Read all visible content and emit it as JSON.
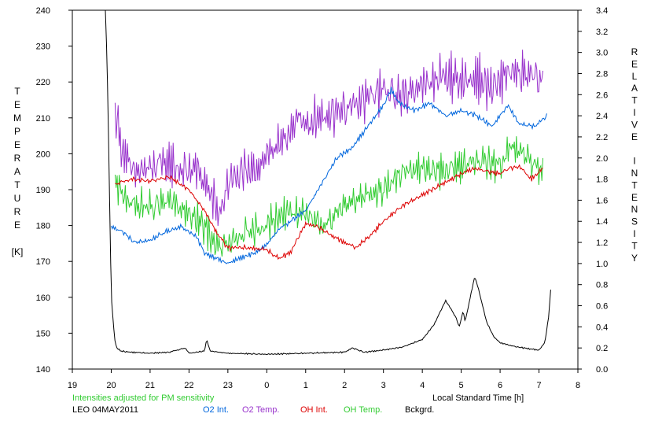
{
  "chart_data": {
    "type": "line",
    "left_axis_label": [
      "T",
      "E",
      "M",
      "P",
      "E",
      "R",
      "A",
      "T",
      "U",
      "R",
      "E",
      "",
      "[K]"
    ],
    "right_axis_label": [
      "R",
      "E",
      "L",
      "A",
      "T",
      "I",
      "V",
      "E",
      "",
      "I",
      "N",
      "T",
      "E",
      "N",
      "S",
      "I",
      "T",
      "Y"
    ],
    "xlabel": "Local Standard Time [h]",
    "x_ticks": [
      "19",
      "20",
      "21",
      "22",
      "23",
      "0",
      "1",
      "2",
      "3",
      "4",
      "5",
      "6",
      "7",
      "8"
    ],
    "ylim_left": [
      140,
      240
    ],
    "y_ticks_left": [
      "140",
      "150",
      "160",
      "170",
      "180",
      "190",
      "200",
      "210",
      "220",
      "230",
      "240"
    ],
    "ylim_right": [
      0,
      3.4
    ],
    "y_ticks_right": [
      "0.0",
      "0.2",
      "0.4",
      "0.6",
      "0.8",
      "1.0",
      "1.2",
      "1.4",
      "1.6",
      "1.8",
      "2.0",
      "2.2",
      "2.4",
      "2.6",
      "2.8",
      "3.0",
      "3.2",
      "3.4"
    ],
    "note": "Intensities adjusted for PM sensitivity",
    "station": "LEO 04MAY2011",
    "series": [
      {
        "name": "O2 Int.",
        "axis": "right",
        "color": "#0066dd",
        "noise": 0.03,
        "x": [
          20.0,
          20.3,
          20.6,
          21.0,
          21.4,
          21.8,
          22.2,
          22.4,
          22.7,
          23.0,
          23.3,
          23.7,
          24.0,
          24.3,
          24.6,
          25.0,
          25.4,
          25.8,
          26.2,
          26.6,
          27.0,
          27.2,
          27.4,
          27.8,
          28.2,
          28.6,
          29.0,
          29.4,
          29.8,
          30.2,
          30.5,
          30.9,
          31.2
        ],
        "y": [
          1.35,
          1.3,
          1.2,
          1.22,
          1.3,
          1.35,
          1.25,
          1.1,
          1.05,
          1.0,
          1.05,
          1.1,
          1.18,
          1.32,
          1.4,
          1.5,
          1.75,
          2.0,
          2.1,
          2.3,
          2.5,
          2.65,
          2.52,
          2.45,
          2.52,
          2.4,
          2.45,
          2.4,
          2.3,
          2.5,
          2.32,
          2.3,
          2.4
        ]
      },
      {
        "name": "O2 Temp.",
        "axis": "left",
        "color": "#9933cc",
        "noise": 8,
        "x": [
          20.1,
          20.3,
          20.6,
          21.0,
          21.4,
          21.8,
          22.2,
          22.5,
          22.8,
          23.0,
          23.4,
          23.8,
          24.0,
          24.4,
          24.8,
          25.0,
          25.4,
          25.8,
          26.2,
          26.6,
          27.0,
          27.4,
          27.8,
          28.2,
          28.6,
          29.0,
          29.4,
          29.8,
          30.2,
          30.5,
          30.9,
          31.1
        ],
        "y": [
          212,
          200,
          195,
          196,
          198,
          195,
          196,
          190,
          183,
          192,
          195,
          196,
          200,
          203,
          210,
          208,
          210,
          212,
          213,
          216,
          218,
          216,
          218,
          220,
          222,
          220,
          221,
          218,
          223,
          222,
          222,
          220
        ]
      },
      {
        "name": "OH Int.",
        "axis": "right",
        "color": "#dd0000",
        "noise": 0.03,
        "x": [
          20.1,
          20.5,
          21.0,
          21.5,
          22.0,
          22.4,
          22.7,
          23.0,
          23.5,
          24.0,
          24.3,
          24.6,
          25.0,
          25.3,
          25.6,
          26.0,
          26.3,
          26.7,
          27.0,
          27.5,
          28.0,
          28.5,
          29.0,
          29.3,
          29.6,
          30.0,
          30.2,
          30.5,
          30.8,
          31.1
        ],
        "y": [
          1.75,
          1.8,
          1.78,
          1.82,
          1.7,
          1.5,
          1.3,
          1.15,
          1.15,
          1.13,
          1.05,
          1.1,
          1.38,
          1.35,
          1.28,
          1.2,
          1.15,
          1.28,
          1.4,
          1.55,
          1.65,
          1.75,
          1.85,
          1.9,
          1.88,
          1.85,
          1.9,
          1.92,
          1.8,
          1.9
        ]
      },
      {
        "name": "OH Temp.",
        "axis": "left",
        "color": "#33cc33",
        "noise": 6,
        "x": [
          20.1,
          20.5,
          21.0,
          21.5,
          22.0,
          22.4,
          22.7,
          23.0,
          23.5,
          24.0,
          24.5,
          25.0,
          25.5,
          26.0,
          26.5,
          27.0,
          27.5,
          28.0,
          28.5,
          29.0,
          29.5,
          30.0,
          30.3,
          30.6,
          31.1
        ],
        "y": [
          192,
          186,
          185,
          187,
          183,
          180,
          174,
          175,
          178,
          180,
          184,
          183,
          180,
          186,
          188,
          190,
          195,
          196,
          195,
          197,
          198,
          197,
          202,
          200,
          195
        ]
      },
      {
        "name": "Bckgrd.",
        "axis": "right",
        "color": "#000000",
        "noise": 0.008,
        "x": [
          19.85,
          19.9,
          19.95,
          20.0,
          20.05,
          20.1,
          20.15,
          20.25,
          20.5,
          21.0,
          21.5,
          21.9,
          22.0,
          22.4,
          22.45,
          22.55,
          23.0,
          24.0,
          25.0,
          26.0,
          26.2,
          26.5,
          27.0,
          27.5,
          28.0,
          28.3,
          28.6,
          28.85,
          28.95,
          29.05,
          29.1,
          29.35,
          29.45,
          29.65,
          29.75,
          29.85,
          30.0,
          30.3,
          30.6,
          31.0,
          31.15,
          31.25,
          31.3
        ],
        "y": [
          3.45,
          2.8,
          1.8,
          0.7,
          0.45,
          0.25,
          0.2,
          0.17,
          0.16,
          0.15,
          0.16,
          0.2,
          0.15,
          0.17,
          0.28,
          0.17,
          0.15,
          0.14,
          0.15,
          0.16,
          0.2,
          0.16,
          0.18,
          0.21,
          0.28,
          0.42,
          0.65,
          0.5,
          0.4,
          0.55,
          0.45,
          0.88,
          0.75,
          0.45,
          0.37,
          0.3,
          0.25,
          0.22,
          0.2,
          0.18,
          0.25,
          0.5,
          0.75
        ]
      }
    ]
  }
}
